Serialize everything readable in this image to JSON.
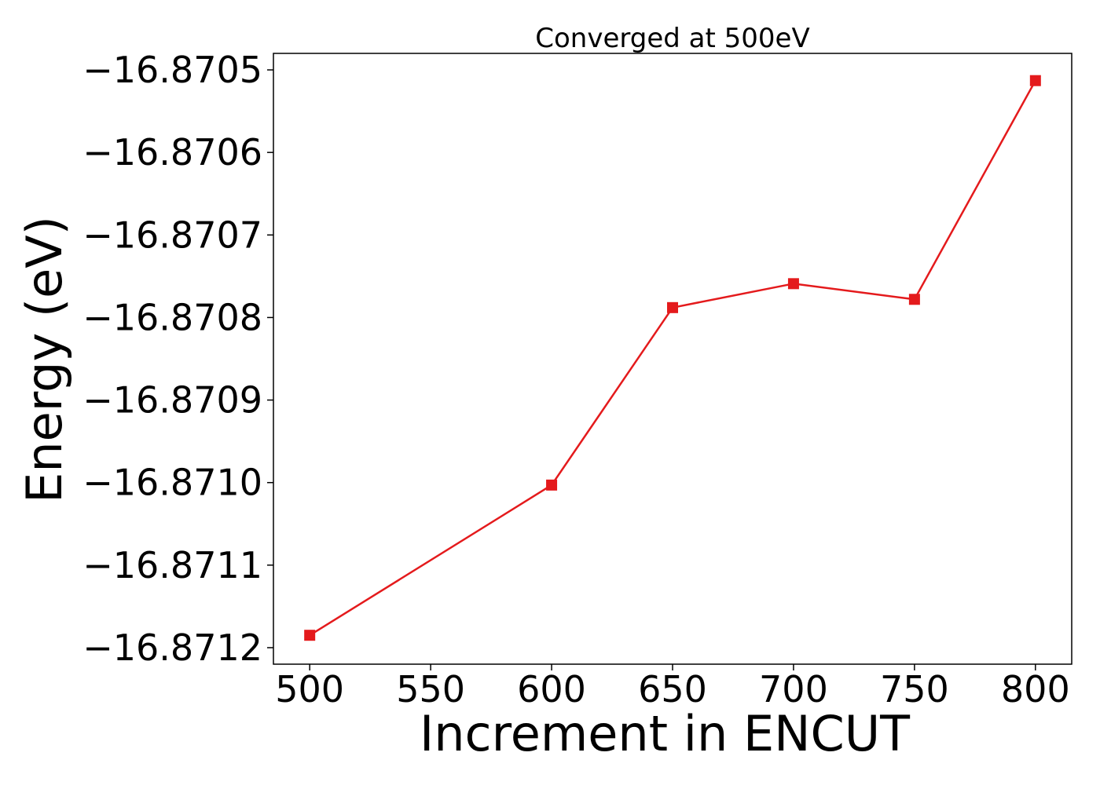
{
  "chart_data": {
    "type": "line",
    "title": "Converged at 500eV",
    "xlabel": "Increment in ENCUT",
    "ylabel": "Energy (eV)",
    "x": [
      500,
      600,
      650,
      700,
      750,
      800
    ],
    "series": [
      {
        "values": [
          -16.871185,
          -16.871003,
          -16.870788,
          -16.870759,
          -16.870778,
          -16.870513
        ]
      }
    ],
    "xticks": [
      500,
      550,
      600,
      650,
      700,
      750,
      800
    ],
    "xtick_labels": [
      "500",
      "550",
      "600",
      "650",
      "700",
      "750",
      "800"
    ],
    "yticks": [
      -16.8712,
      -16.8711,
      -16.871,
      -16.8709,
      -16.8708,
      -16.8707,
      -16.8706,
      -16.8705
    ],
    "ytick_labels": [
      "−16.8712",
      "−16.8711",
      "−16.8710",
      "−16.8709",
      "−16.8708",
      "−16.8707",
      "−16.8706",
      "−16.8705"
    ],
    "xlim": [
      485,
      815
    ],
    "ylim": [
      -16.87122,
      -16.87048
    ],
    "grid": false,
    "marker": "square",
    "color": "#e41a1c"
  }
}
